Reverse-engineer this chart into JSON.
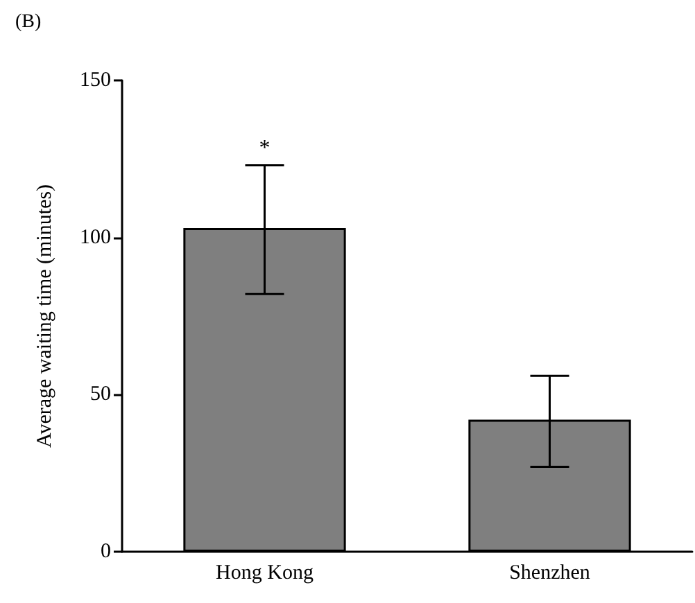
{
  "chart_data": {
    "type": "bar",
    "title": "(B)",
    "ylabel": "Average waiting time (minutes)",
    "categories": [
      "Hong Kong",
      "Shenzhen"
    ],
    "values": [
      103,
      42
    ],
    "color": "#7f7f7f",
    "errors": [
      [
        82,
        123
      ],
      [
        27,
        56
      ]
    ],
    "ylim": [
      0,
      150
    ],
    "yticks": [
      0,
      50,
      100,
      150
    ],
    "grid": false,
    "annotations": [
      {
        "text": "*",
        "x": "Hong Kong",
        "y": 123
      }
    ]
  }
}
